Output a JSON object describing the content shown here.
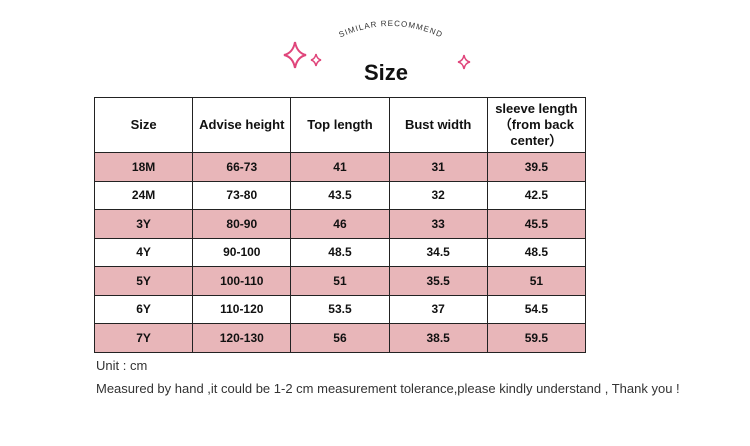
{
  "header": {
    "tag": "SIMILAR RECOMMEND",
    "title": "Size"
  },
  "table": {
    "columns": [
      "Size",
      "Advise height",
      "Top length",
      "Bust width",
      "sleeve length（from back center）"
    ],
    "rows": [
      [
        "18M",
        "66-73",
        "41",
        "31",
        "39.5"
      ],
      [
        "24M",
        "73-80",
        "43.5",
        "32",
        "42.5"
      ],
      [
        "3Y",
        "80-90",
        "46",
        "33",
        "45.5"
      ],
      [
        "4Y",
        "90-100",
        "48.5",
        "34.5",
        "48.5"
      ],
      [
        "5Y",
        "100-110",
        "51",
        "35.5",
        "51"
      ],
      [
        "6Y",
        "110-120",
        "53.5",
        "37",
        "54.5"
      ],
      [
        "7Y",
        "120-130",
        "56",
        "38.5",
        "59.5"
      ]
    ]
  },
  "notes": [
    "Unit : cm",
    "Measured by hand ,it could be 1-2 cm measurement tolerance,please kindly understand , Thank you !"
  ]
}
